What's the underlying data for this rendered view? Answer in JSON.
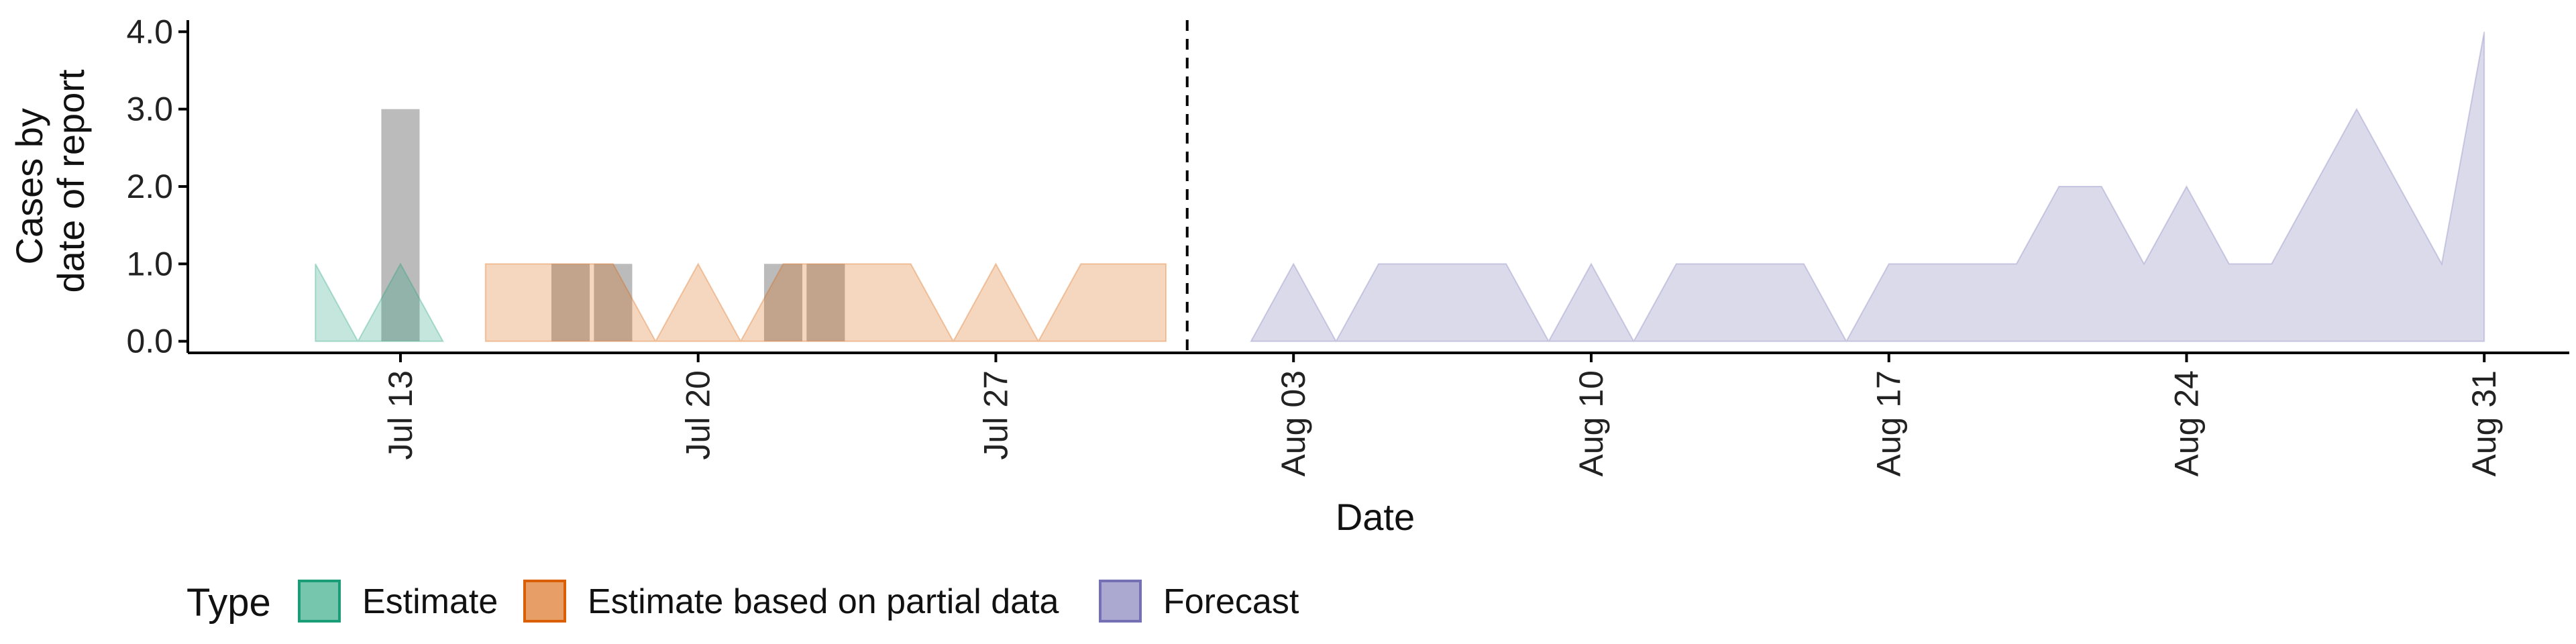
{
  "colors": {
    "estimate": "#1b9e77",
    "partial": "#d95f02",
    "forecast": "#7570b3",
    "bars": "#9e9e9e",
    "axis": "#000000"
  },
  "chart_data": {
    "type": "area",
    "xlabel": "Date",
    "ylabel_lines": [
      "Cases by",
      "date of report"
    ],
    "x_ticks": [
      "Jul 13",
      "Jul 20",
      "Jul 27",
      "Aug 03",
      "Aug 10",
      "Aug 17",
      "Aug 24",
      "Aug 31"
    ],
    "y_ticks": [
      "0.0",
      "1.0",
      "2.0",
      "3.0",
      "4.0"
    ],
    "ylim": [
      -0.15,
      4.15
    ],
    "xlim": [
      "2020-07-08",
      "2020-09-02"
    ],
    "cutoff_date": "2020-07-31",
    "legend": {
      "title": "Type",
      "position": "bottom",
      "items": [
        "Estimate",
        "Estimate based on partial data",
        "Forecast"
      ]
    },
    "reported_cases": [
      {
        "date": "2020-07-13",
        "value": 3
      },
      {
        "date": "2020-07-17",
        "value": 1
      },
      {
        "date": "2020-07-18",
        "value": 1
      },
      {
        "date": "2020-07-22",
        "value": 1
      },
      {
        "date": "2020-07-23",
        "value": 1
      }
    ],
    "series": [
      {
        "name": "Estimate",
        "key": "estimate",
        "points": [
          [
            "2020-07-11",
            1
          ],
          [
            "2020-07-12",
            0
          ],
          [
            "2020-07-13",
            1
          ],
          [
            "2020-07-14",
            0
          ]
        ]
      },
      {
        "name": "Estimate based on partial data",
        "key": "partial",
        "points": [
          [
            "2020-07-15",
            1
          ],
          [
            "2020-07-16",
            1
          ],
          [
            "2020-07-17",
            1
          ],
          [
            "2020-07-18",
            1
          ],
          [
            "2020-07-19",
            0
          ],
          [
            "2020-07-20",
            1
          ],
          [
            "2020-07-21",
            0
          ],
          [
            "2020-07-22",
            1
          ],
          [
            "2020-07-23",
            1
          ],
          [
            "2020-07-24",
            1
          ],
          [
            "2020-07-25",
            1
          ],
          [
            "2020-07-26",
            0
          ],
          [
            "2020-07-27",
            1
          ],
          [
            "2020-07-28",
            0
          ],
          [
            "2020-07-29",
            1
          ],
          [
            "2020-07-30",
            1
          ],
          [
            "2020-07-31",
            1
          ]
        ]
      },
      {
        "name": "Forecast",
        "key": "forecast",
        "points": [
          [
            "2020-08-02",
            0
          ],
          [
            "2020-08-03",
            1
          ],
          [
            "2020-08-04",
            0
          ],
          [
            "2020-08-05",
            1
          ],
          [
            "2020-08-06",
            1
          ],
          [
            "2020-08-07",
            1
          ],
          [
            "2020-08-08",
            1
          ],
          [
            "2020-08-09",
            0
          ],
          [
            "2020-08-10",
            1
          ],
          [
            "2020-08-11",
            0
          ],
          [
            "2020-08-12",
            1
          ],
          [
            "2020-08-13",
            1
          ],
          [
            "2020-08-14",
            1
          ],
          [
            "2020-08-15",
            1
          ],
          [
            "2020-08-16",
            0
          ],
          [
            "2020-08-17",
            1
          ],
          [
            "2020-08-18",
            1
          ],
          [
            "2020-08-19",
            1
          ],
          [
            "2020-08-20",
            1
          ],
          [
            "2020-08-21",
            2
          ],
          [
            "2020-08-22",
            2
          ],
          [
            "2020-08-23",
            1
          ],
          [
            "2020-08-24",
            2
          ],
          [
            "2020-08-25",
            1
          ],
          [
            "2020-08-26",
            1
          ],
          [
            "2020-08-27",
            2
          ],
          [
            "2020-08-28",
            3
          ],
          [
            "2020-08-29",
            2
          ],
          [
            "2020-08-30",
            1
          ],
          [
            "2020-08-31",
            4
          ]
        ]
      }
    ]
  }
}
